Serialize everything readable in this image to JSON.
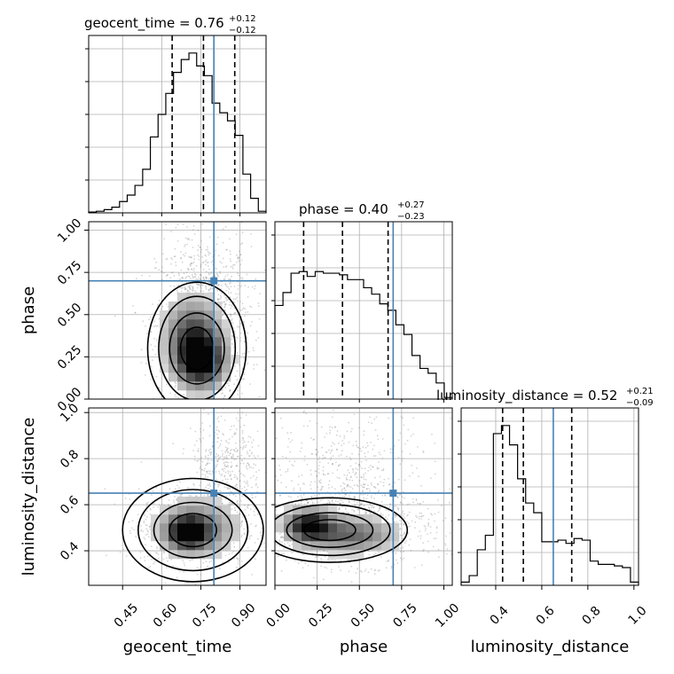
{
  "chart_data": {
    "type": "corner",
    "parameters": [
      "geocent_time",
      "phase",
      "luminosity_distance"
    ],
    "axis_labels": [
      "geocent_time",
      "phase",
      "luminosity_distance"
    ],
    "ranges": [
      [
        0.32,
        1.0
      ],
      [
        0.0,
        1.05
      ],
      [
        0.25,
        1.02
      ]
    ],
    "ticks": [
      [
        "0.45",
        "0.60",
        "0.75",
        "0.90"
      ],
      [
        "0.00",
        "0.25",
        "0.50",
        "0.75",
        "1.00"
      ],
      [
        "0.4",
        "0.6",
        "0.8",
        "1.0"
      ]
    ],
    "truths": [
      0.8,
      0.7,
      0.65
    ],
    "truth_color": "#4682b4",
    "grid": true,
    "titles": [
      {
        "param": "geocent_time",
        "label": "geocent_time = 0.76",
        "plus": "+0.12",
        "minus": "−0.12",
        "median": 0.76,
        "q_low": 0.64,
        "q_high": 0.88
      },
      {
        "param": "phase",
        "label": "phase = 0.40",
        "plus": "+0.27",
        "minus": "−0.23",
        "median": 0.4,
        "q_low": 0.17,
        "q_high": 0.67
      },
      {
        "param": "luminosity_distance",
        "label": "luminosity_distance = 0.52",
        "plus": "+0.21",
        "minus": "−0.09",
        "median": 0.52,
        "q_low": 0.43,
        "q_high": 0.73
      }
    ],
    "histograms": [
      {
        "param": "geocent_time",
        "bin_range": [
          0.32,
          1.0
        ],
        "counts": [
          0.005,
          0.01,
          0.02,
          0.035,
          0.07,
          0.11,
          0.17,
          0.27,
          0.47,
          0.61,
          0.74,
          0.87,
          0.95,
          0.99,
          0.91,
          0.85,
          0.68,
          0.62,
          0.57,
          0.48,
          0.24,
          0.09,
          0.01
        ]
      },
      {
        "param": "phase",
        "bin_range": [
          0.0,
          1.05
        ],
        "counts": [
          0.58,
          0.66,
          0.78,
          0.79,
          0.76,
          0.79,
          0.78,
          0.78,
          0.77,
          0.74,
          0.74,
          0.69,
          0.65,
          0.59,
          0.55,
          0.46,
          0.4,
          0.27,
          0.19,
          0.16,
          0.1,
          0.01
        ]
      },
      {
        "param": "luminosity_distance",
        "bin_range": [
          0.25,
          1.02
        ],
        "counts": [
          0.02,
          0.06,
          0.22,
          0.31,
          0.94,
          0.99,
          0.87,
          0.66,
          0.51,
          0.45,
          0.27,
          0.27,
          0.28,
          0.26,
          0.29,
          0.28,
          0.15,
          0.13,
          0.13,
          0.12,
          0.11,
          0.02
        ]
      }
    ],
    "density_peaks": [
      {
        "x_param": "geocent_time",
        "y_param": "phase",
        "peak": [
          0.75,
          0.2
        ],
        "core": [
          0.72,
          0.37
        ]
      },
      {
        "x_param": "geocent_time",
        "y_param": "luminosity_distance",
        "peak": [
          0.7,
          0.48
        ]
      },
      {
        "x_param": "phase",
        "y_param": "luminosity_distance",
        "peak": [
          0.18,
          0.51
        ],
        "second": [
          0.4,
          0.46
        ]
      }
    ]
  }
}
